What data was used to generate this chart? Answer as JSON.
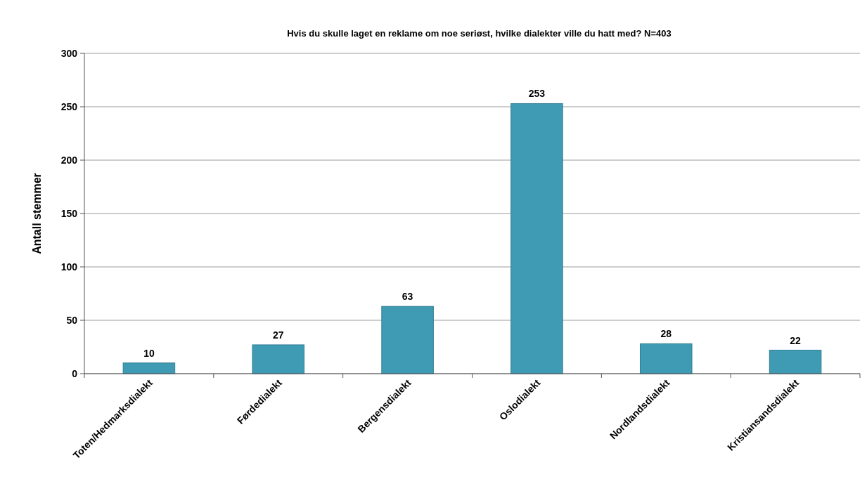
{
  "chart_data": {
    "type": "bar",
    "title": "Hvis du skulle laget en reklame om noe seriøst, hvilke dialekter ville du hatt med? N=403",
    "ylabel": "Antall stemmer",
    "categories": [
      "Toten/Hedmarksdialekt",
      "Førdedialekt",
      "Bergensdialekt",
      "Oslodialekt",
      "Nordlandsdialekt",
      "Kristiansandsdialekt"
    ],
    "values": [
      10,
      27,
      63,
      253,
      28,
      22
    ],
    "color": "#3f9bb3",
    "ylim": [
      0,
      300
    ],
    "yticks": [
      0,
      50,
      100,
      150,
      200,
      250,
      300
    ],
    "grid": "y",
    "data_labels": true
  }
}
